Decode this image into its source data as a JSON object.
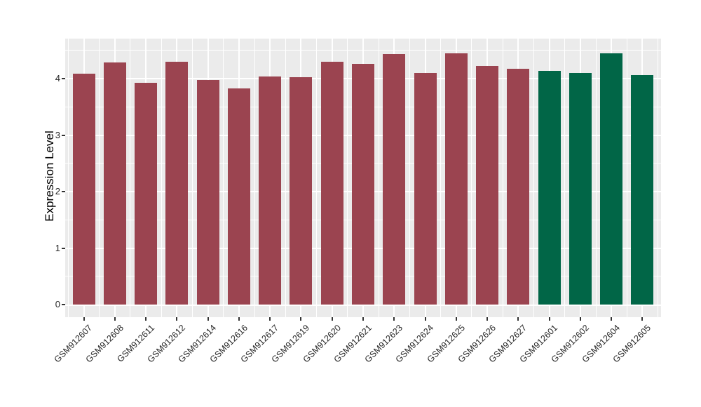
{
  "chart_data": {
    "type": "bar",
    "title": "",
    "xlabel": "",
    "ylabel": "Expression Level",
    "categories": [
      "GSM912607",
      "GSM912608",
      "GSM912611",
      "GSM912612",
      "GSM912614",
      "GSM912616",
      "GSM912617",
      "GSM912619",
      "GSM912620",
      "GSM912621",
      "GSM912623",
      "GSM912624",
      "GSM912625",
      "GSM912626",
      "GSM912627",
      "GSM912601",
      "GSM912602",
      "GSM912604",
      "GSM912605"
    ],
    "values": [
      4.09,
      4.28,
      3.92,
      4.3,
      3.98,
      3.83,
      4.04,
      4.02,
      4.3,
      4.26,
      4.43,
      4.1,
      4.45,
      4.22,
      4.17,
      4.14,
      4.1,
      4.45,
      4.06
    ],
    "bar_colors": [
      "#9B4450",
      "#9B4450",
      "#9B4450",
      "#9B4450",
      "#9B4450",
      "#9B4450",
      "#9B4450",
      "#9B4450",
      "#9B4450",
      "#9B4450",
      "#9B4450",
      "#9B4450",
      "#9B4450",
      "#9B4450",
      "#9B4450",
      "#016647",
      "#016647",
      "#016647",
      "#016647"
    ],
    "group_color_legend": {
      "first_15_bars": "#9B4450",
      "last_4_bars": "#016647"
    },
    "yticks": [
      0,
      1,
      2,
      3,
      4
    ],
    "ylim": [
      0,
      4.72
    ],
    "grid": "on",
    "legend_position": "none",
    "panel_background": "#EBEBEB",
    "gridline_color": "#FFFFFF",
    "tick_mark_color": "#333333",
    "axis_text_color": "#262626"
  }
}
